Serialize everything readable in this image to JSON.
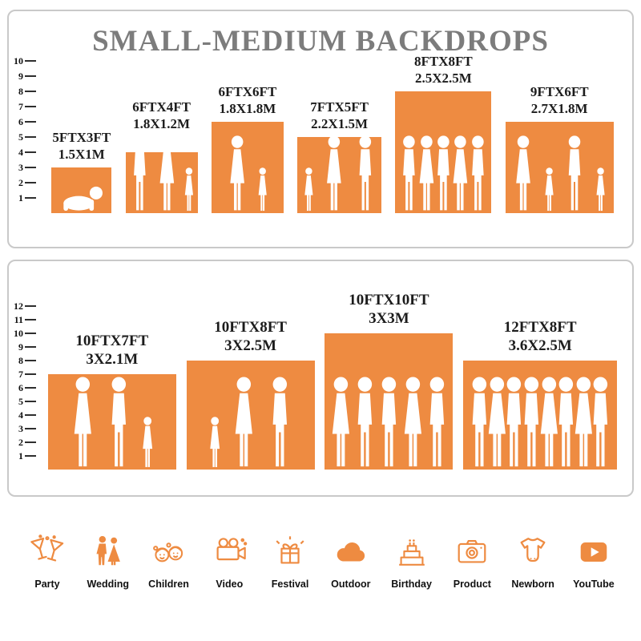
{
  "title": "SMALL-MEDIUM BACKDROPS",
  "colors": {
    "orange": "#EE8B41",
    "title_gray": "#7C7C7C",
    "panel_border": "#C9C9C9",
    "label_dark": "#1C1C1C"
  },
  "chart_data": [
    {
      "type": "bar",
      "title": "SMALL-MEDIUM BACKDROPS",
      "ylim": [
        0,
        10
      ],
      "grid": false,
      "legend": "none",
      "categories": [
        "5FTX3FT",
        "6FTX4FT",
        "6FTX6FT",
        "7FTX5FT",
        "8FTX8FT",
        "9FTX6FT"
      ],
      "metric_labels": [
        "1.5X1M",
        "1.8X1.2M",
        "1.8X1.8M",
        "2.2X1.5M",
        "2.5X2.5M",
        "2.7X1.8M"
      ],
      "values": [
        3,
        4,
        6,
        5,
        8,
        6
      ],
      "widths_ft": [
        5,
        6,
        6,
        7,
        8,
        9
      ],
      "figures": [
        [
          "baby"
        ],
        [
          "man",
          "woman",
          "girl"
        ],
        [
          "woman",
          "girl"
        ],
        [
          "girl",
          "woman",
          "man"
        ],
        [
          "man",
          "woman",
          "man",
          "woman",
          "man"
        ],
        [
          "woman",
          "girl",
          "man",
          "girl"
        ]
      ]
    },
    {
      "type": "bar",
      "title": "",
      "ylim": [
        0,
        12
      ],
      "grid": false,
      "legend": "none",
      "categories": [
        "10FTX7FT",
        "10FTX8FT",
        "10FTX10FT",
        "12FTX8FT"
      ],
      "metric_labels": [
        "3X2.1M",
        "3X2.5M",
        "3X3M",
        "3.6X2.5M"
      ],
      "values": [
        7,
        8,
        10,
        8
      ],
      "widths_ft": [
        10,
        10,
        10,
        12
      ],
      "figures": [
        [
          "woman",
          "man",
          "girl"
        ],
        [
          "girl",
          "woman",
          "man"
        ],
        [
          "woman",
          "man",
          "man",
          "woman",
          "man"
        ],
        [
          "man",
          "woman",
          "man",
          "man",
          "woman",
          "man",
          "woman",
          "man"
        ]
      ]
    }
  ],
  "categories_row": [
    {
      "icon": "party",
      "label": "Party"
    },
    {
      "icon": "wedding",
      "label": "Wedding"
    },
    {
      "icon": "children",
      "label": "Children"
    },
    {
      "icon": "video",
      "label": "Video"
    },
    {
      "icon": "festival",
      "label": "Festival"
    },
    {
      "icon": "outdoor",
      "label": "Outdoor"
    },
    {
      "icon": "birthday",
      "label": "Birthday"
    },
    {
      "icon": "product",
      "label": "Product"
    },
    {
      "icon": "newborn",
      "label": "Newborn"
    },
    {
      "icon": "youtube",
      "label": "YouTube"
    }
  ]
}
